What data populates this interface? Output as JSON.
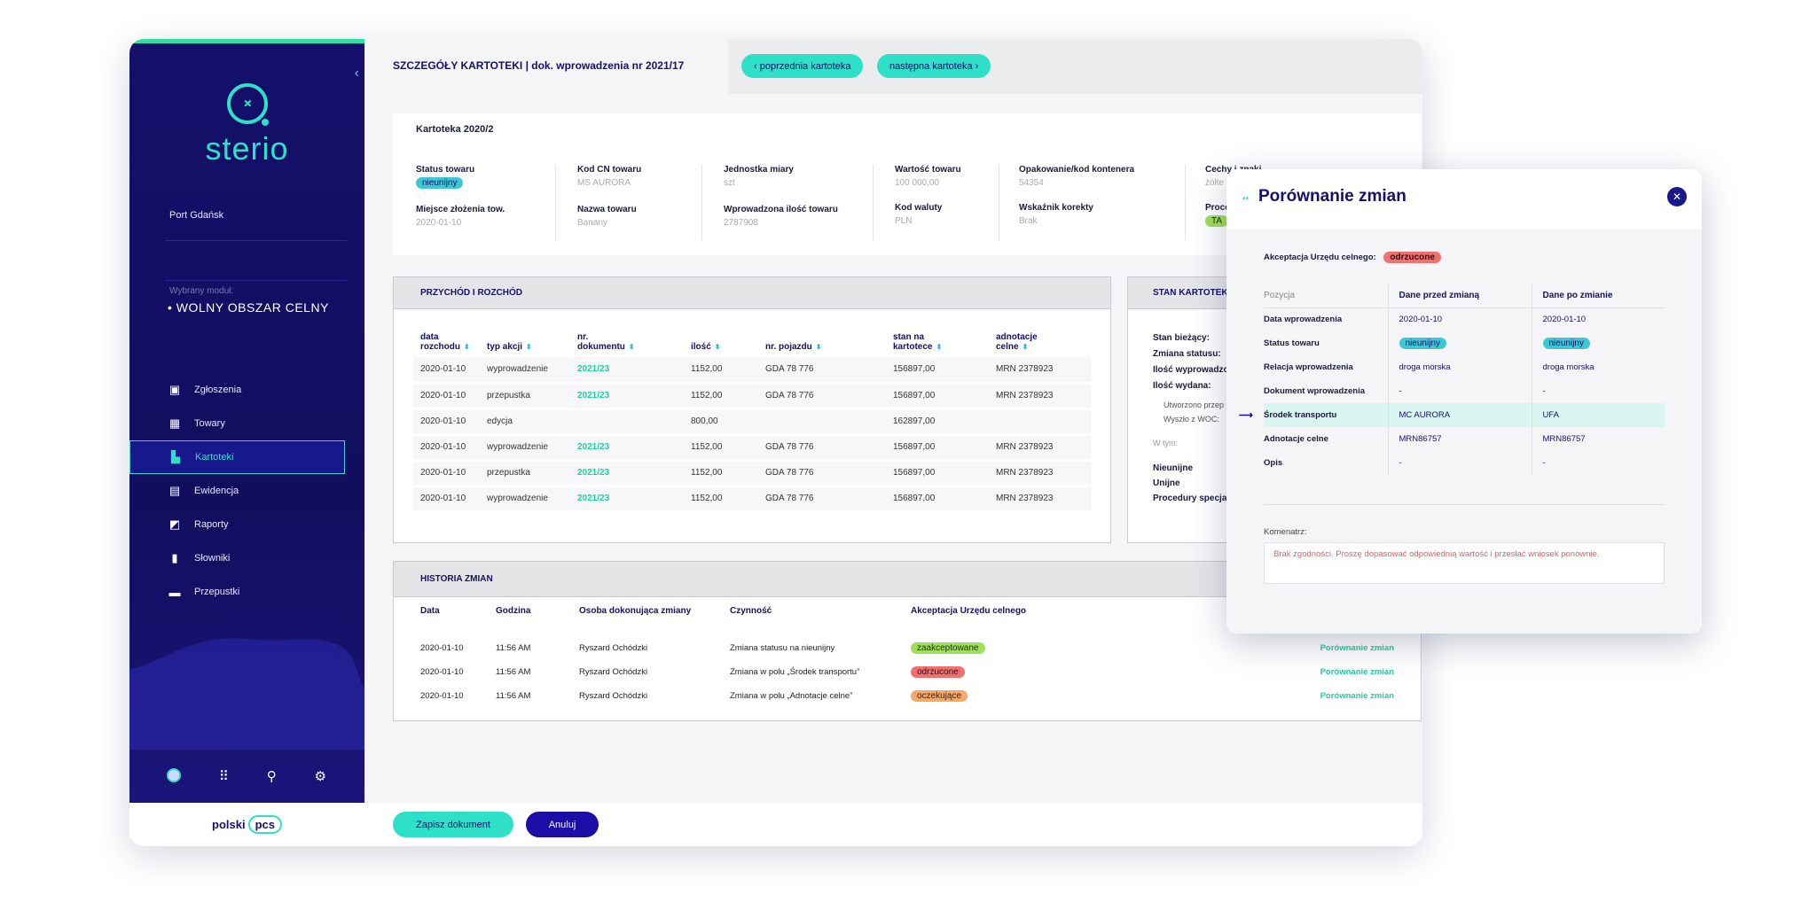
{
  "sidebar": {
    "brand": "sterio",
    "port": "Port Gdańsk",
    "module_caption": "Wybrany moduł:",
    "module_name": "• WOLNY OBSZAR CELNY",
    "items": [
      {
        "label": "Zgłoszenia",
        "icon": "check-doc-icon"
      },
      {
        "label": "Towary",
        "icon": "boxes-icon"
      },
      {
        "label": "Kartoteki",
        "icon": "folder-icon"
      },
      {
        "label": "Ewidencja",
        "icon": "ledger-icon"
      },
      {
        "label": "Raporty",
        "icon": "chart-icon"
      },
      {
        "label": "Słowniki",
        "icon": "book-icon"
      },
      {
        "label": "Przepustki",
        "icon": "pass-icon"
      }
    ],
    "footer_brand": "polski",
    "footer_brand_ring": "pcs"
  },
  "header": {
    "title": "SZCZEGÓŁY KARTOTEKI  |  dok. wprowadzenia nr 2021/17",
    "prev": "‹  poprzednia kartoteka",
    "next": "następna kartoteka  ›"
  },
  "kartoteka": {
    "title": "Kartoteka 2020/2",
    "fields": {
      "status_label": "Status towaru",
      "status_value": "nieunijny",
      "miejsce_label": "Miejsce złożenia tow.",
      "miejsce_value": "2020-01-10",
      "kodcn_label": "Kod CN towaru",
      "kodcn_value": "MS AURORA",
      "nazwa_label": "Nazwa towaru",
      "nazwa_value": "Banany",
      "jm_label": "Jednostka miary",
      "jm_value": "szt",
      "ilosc_label": "Wprowadzona ilość towaru",
      "ilosc_value": "2787908",
      "wartosc_label": "Wartość towaru",
      "wartosc_value": "100 000,00",
      "waluta_label": "Kod waluty",
      "waluta_value": "PLN",
      "opak_label": "Opakowanie/kod kontenera",
      "opak_value": "54354",
      "wsk_label": "Wskaźnik korekty",
      "wsk_value": "Brak",
      "cechy_label": "Cechy i znaki ",
      "cechy_value": "żółte",
      "proc_label": "Proce",
      "proc_value": "TA"
    }
  },
  "flow": {
    "title": "PRZYCHÓD I ROZCHÓD",
    "headers": [
      "data\nrozchodu",
      "typ akcji",
      "nr.\ndokumentu",
      "ilość",
      "nr. pojazdu",
      "stan na\nkartotece",
      "adnotacje\ncelne"
    ],
    "rows": [
      [
        "2020-01-10",
        "wyprowadzenie",
        "2021/23",
        "1152,00",
        "GDA 78 776",
        "156897,00",
        "MRN 2378923"
      ],
      [
        "2020-01-10",
        "przepustka",
        "2021/23",
        "1152,00",
        "GDA 78 776",
        "156897,00",
        "MRN 2378923"
      ],
      [
        "2020-01-10",
        "edycja",
        "",
        "800,00",
        "",
        "162897,00",
        ""
      ],
      [
        "2020-01-10",
        "wyprowadzenie",
        "2021/23",
        "1152,00",
        "GDA 78 776",
        "156897,00",
        "MRN 2378923"
      ],
      [
        "2020-01-10",
        "przepustka",
        "2021/23",
        "1152,00",
        "GDA 78 776",
        "156897,00",
        "MRN 2378923"
      ],
      [
        "2020-01-10",
        "wyprowadzenie",
        "2021/23",
        "1152,00",
        "GDA 78 776",
        "156897,00",
        "MRN 2378923"
      ]
    ]
  },
  "stan": {
    "title": "STAN KARTOTEKI",
    "biezacy": "Stan bieżący:",
    "zmiana": "Zmiana statusu:",
    "wprow": "Ilość wyprowadzon",
    "wydana": "Ilość wydana:",
    "utw": "Utworzono przep",
    "wyszlo": "Wyszło z WOC:",
    "wtym": "W tym:",
    "nieunijne": "Nieunijne",
    "unijne": "Unijne",
    "proc": "Procedury specjal"
  },
  "history": {
    "title": "HISTORIA ZMIAN",
    "headers": [
      "Data",
      "Godzina",
      "Osoba dokonująca zmiany",
      "Czynność",
      "Akceptacja Urzędu celnego"
    ],
    "rows": [
      {
        "date": "2020-01-10",
        "time": "11:56 AM",
        "person": "Ryszard Ochódzki",
        "action": "Zmiana statusu na nieunijny",
        "status": "zaakceptowane",
        "kind": "green",
        "link": "Porównanie zmian"
      },
      {
        "date": "2020-01-10",
        "time": "11:56 AM",
        "person": "Ryszard Ochódzki",
        "action": "Zmiana w polu „Środek transportu”",
        "status": "odrzucone",
        "kind": "red",
        "link": "Porównanie zmian"
      },
      {
        "date": "2020-01-10",
        "time": "11:56 AM",
        "person": "Ryszard Ochódzki",
        "action": "Zmiana w polu „Adnotacje celne”",
        "status": "oczekujące",
        "kind": "orange",
        "link": "Porównanie zmian"
      }
    ]
  },
  "footer": {
    "save": "Zapisz dokument",
    "cancel": "Anuluj"
  },
  "modal": {
    "title": "Porównanie zmian",
    "accept_label": "Akceptacja Urzędu celnego:",
    "accept_status": "odrzucone",
    "headers": [
      "Pozycja",
      "Dane przed zmianą",
      "Dane po zmianie"
    ],
    "rows": [
      {
        "label": "Data wprowadzenia",
        "before": "2020-01-10",
        "after": "2020-01-10"
      },
      {
        "label": "Status towaru",
        "before": "nieunijny",
        "after": "nieunijny",
        "badge": true
      },
      {
        "label": "Relacja wprowadzenia",
        "before": "droga morska",
        "after": "droga morska"
      },
      {
        "label": "Dokument wprowadzenia",
        "before": "-",
        "after": "-"
      },
      {
        "label": "Środek transportu",
        "before": "MC AURORA",
        "after": "UFA",
        "highlight": true
      },
      {
        "label": "Adnotacje celne",
        "before": "MRN86757",
        "after": "MRN86757"
      },
      {
        "label": "Opis",
        "before": "-",
        "after": "-"
      }
    ],
    "comment_label": "Komenatrz:",
    "comment": "Brak zgodności. Proszę dopasować odpowiednią wartość i przesłać wniosek ponownie."
  },
  "colors": {
    "sidebar": "#14106b",
    "accent": "#2fe0c8",
    "link": "#1fcf9e"
  }
}
